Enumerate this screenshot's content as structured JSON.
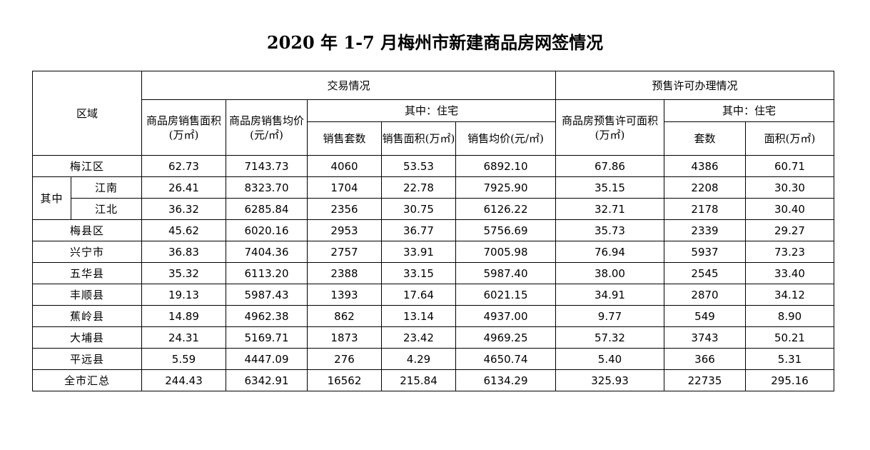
{
  "title": "2020 年 1-7 月梅州市新建商品房网签情况",
  "headers": {
    "region": "区域",
    "transaction": "交易情况",
    "presale": "预售许可办理情况",
    "sales_area": "商品房销售面积(万㎡)",
    "sales_price": "商品房销售均价(元/㎡)",
    "of_which_residential": "其中：住宅",
    "units_sold": "销售套数",
    "sold_area": "销售面积(万㎡)",
    "avg_price": "销售均价(元/㎡)",
    "presale_area": "商品房预售许可面积(万㎡)",
    "presale_of_which": "其中：住宅",
    "units": "套数",
    "area": "面积(万㎡)",
    "of_which": "其中"
  },
  "rows": [
    {
      "name": "梅江区",
      "v": [
        "62.73",
        "7143.73",
        "4060",
        "53.53",
        "6892.10",
        "67.86",
        "4386",
        "60.71"
      ]
    },
    {
      "name": "江南",
      "v": [
        "26.41",
        "8323.70",
        "1704",
        "22.78",
        "7925.90",
        "35.15",
        "2208",
        "30.30"
      ]
    },
    {
      "name": "江北",
      "v": [
        "36.32",
        "6285.84",
        "2356",
        "30.75",
        "6126.22",
        "32.71",
        "2178",
        "30.40"
      ]
    },
    {
      "name": "梅县区",
      "v": [
        "45.62",
        "6020.16",
        "2953",
        "36.77",
        "5756.69",
        "35.73",
        "2339",
        "29.27"
      ]
    },
    {
      "name": "兴宁市",
      "v": [
        "36.83",
        "7404.36",
        "2757",
        "33.91",
        "7005.98",
        "76.94",
        "5937",
        "73.23"
      ]
    },
    {
      "name": "五华县",
      "v": [
        "35.32",
        "6113.20",
        "2388",
        "33.15",
        "5987.40",
        "38.00",
        "2545",
        "33.40"
      ]
    },
    {
      "name": "丰顺县",
      "v": [
        "19.13",
        "5987.43",
        "1393",
        "17.64",
        "6021.15",
        "34.91",
        "2870",
        "34.12"
      ]
    },
    {
      "name": "蕉岭县",
      "v": [
        "14.89",
        "4962.38",
        "862",
        "13.14",
        "4937.00",
        "9.77",
        "549",
        "8.90"
      ]
    },
    {
      "name": "大埔县",
      "v": [
        "24.31",
        "5169.71",
        "1873",
        "23.42",
        "4969.25",
        "57.32",
        "3743",
        "50.21"
      ]
    },
    {
      "name": "平远县",
      "v": [
        "5.59",
        "4447.09",
        "276",
        "4.29",
        "4650.74",
        "5.40",
        "366",
        "5.31"
      ]
    },
    {
      "name": "全市汇总",
      "v": [
        "244.43",
        "6342.91",
        "16562",
        "215.84",
        "6134.29",
        "325.93",
        "22735",
        "295.16"
      ]
    }
  ]
}
